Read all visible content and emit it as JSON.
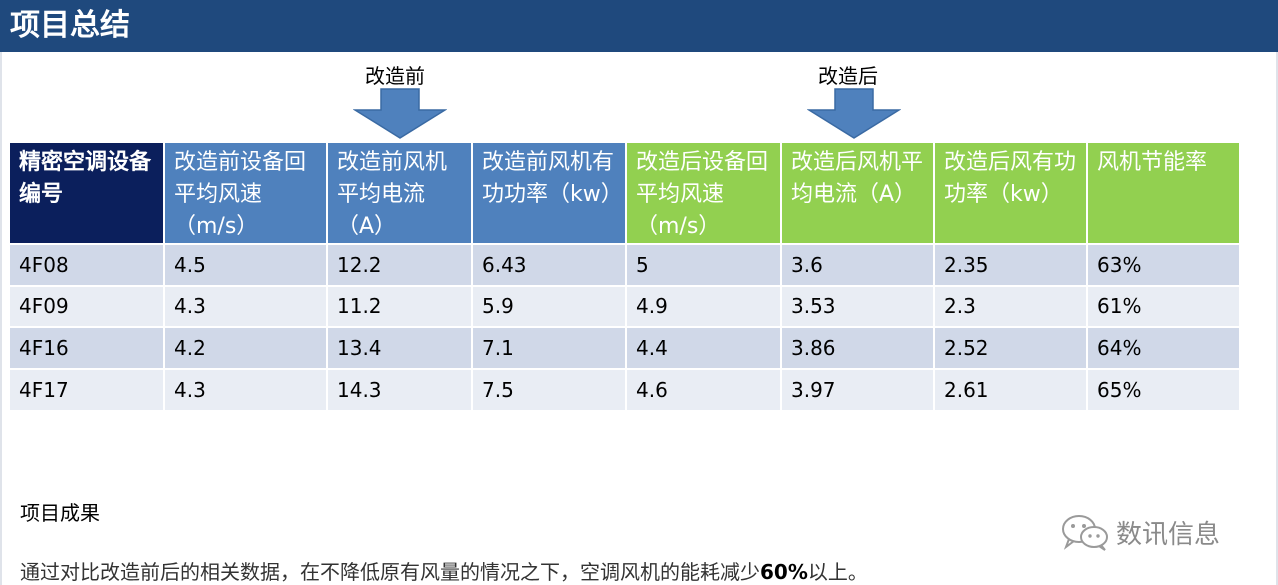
{
  "title": "项目总结",
  "markers": {
    "before_label": "改造前",
    "after_label": "改造后"
  },
  "table": {
    "headers": [
      "精密空调设备编号",
      "改造前设备回平均风速（m/s）",
      "改造前风机平均电流 （A）",
      "改造前风机有功功率（kw）",
      "改造后设备回平均风速（m/s）",
      "改造后风机平均电流（A）",
      "改造后风有功功率（kw）",
      "风机节能率"
    ],
    "rows": [
      [
        "4F08",
        "4.5",
        "12.2",
        "6.43",
        "5",
        "3.6",
        "2.35",
        "63%"
      ],
      [
        "4F09",
        "4.3",
        "11.2",
        "5.9",
        "4.9",
        "3.53",
        "2.3",
        "61%"
      ],
      [
        "4F16",
        "4.2",
        "13.4",
        "7.1",
        "4.4",
        "3.86",
        "2.52",
        "64%"
      ],
      [
        "4F17",
        "4.3",
        "14.3",
        "7.5",
        "4.6",
        "3.97",
        "2.61",
        "65%"
      ]
    ]
  },
  "result": {
    "heading": "项目成果",
    "text_before": "通过对比改造前后的相关数据，在不降低原有风量的情况之下，空调风机的能耗减少",
    "text_highlight": "60%",
    "text_after": "以上。"
  },
  "watermark": {
    "icon": "wechat-icon",
    "text": "数讯信息"
  },
  "colors": {
    "title_bar": "#1f497d",
    "header_dark": "#0b1f5c",
    "header_before": "#4f81bd",
    "header_after": "#92d050",
    "row_odd": "#d0d8e8",
    "row_even": "#e9edf4",
    "arrow": "#4f81bd"
  }
}
